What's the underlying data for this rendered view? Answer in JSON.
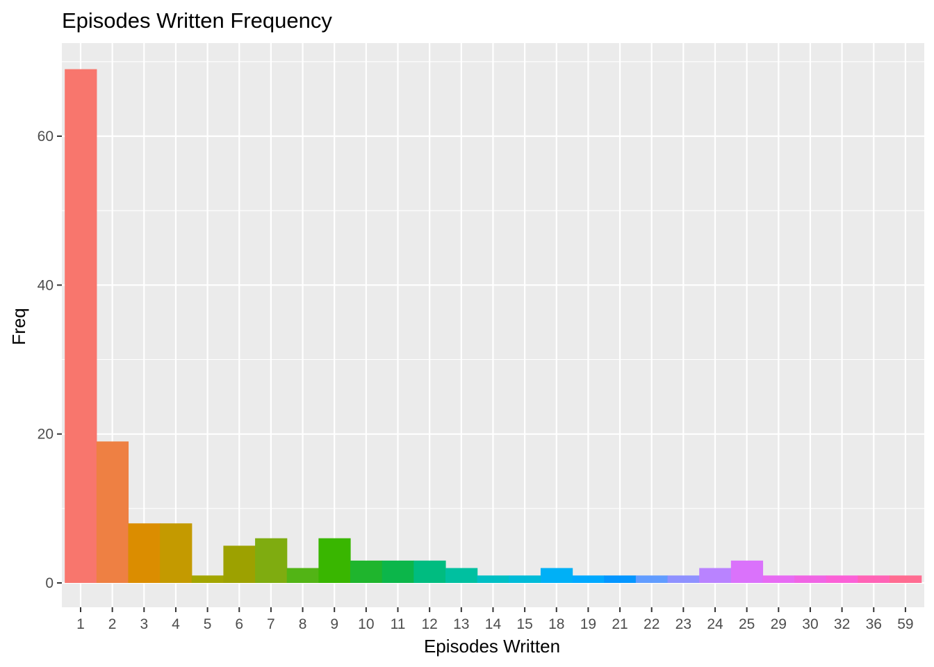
{
  "chart_data": {
    "type": "bar",
    "title": "Episodes Written Frequency",
    "xlabel": "Episodes Written",
    "ylabel": "Freq",
    "categories": [
      "1",
      "2",
      "3",
      "4",
      "5",
      "6",
      "7",
      "8",
      "9",
      "10",
      "11",
      "12",
      "13",
      "14",
      "15",
      "18",
      "19",
      "21",
      "22",
      "23",
      "24",
      "25",
      "29",
      "30",
      "32",
      "36",
      "59"
    ],
    "values": [
      69,
      19,
      8,
      8,
      1,
      5,
      6,
      2,
      6,
      3,
      3,
      3,
      2,
      1,
      1,
      2,
      1,
      1,
      1,
      1,
      2,
      3,
      1,
      1,
      1,
      1,
      1
    ],
    "colors": [
      "#F8766D",
      "#EE8043",
      "#DB8D00",
      "#C49A00",
      "#A3A500",
      "#9DA100",
      "#7FAC10",
      "#52B415",
      "#39B600",
      "#1FB52D",
      "#0CB64A",
      "#00BC80",
      "#00C0A0",
      "#00BFC4",
      "#00BBD8",
      "#00B0F6",
      "#00A9FF",
      "#0496FF",
      "#619CFF",
      "#8F91FF",
      "#B983FF",
      "#DA72FB",
      "#E76BF3",
      "#F065E4",
      "#FB61D7",
      "#FF63B6",
      "#FF6C91"
    ],
    "ylim": [
      0,
      72
    ],
    "yticks": [
      0,
      20,
      40,
      60
    ],
    "grid": true,
    "legend": "none",
    "panel_background": "#EBEBEB",
    "grid_color": "#FFFFFF"
  }
}
